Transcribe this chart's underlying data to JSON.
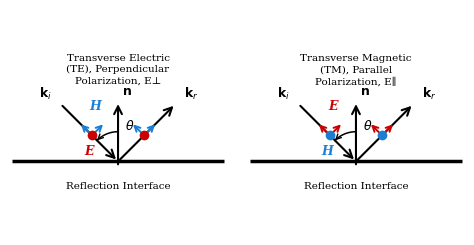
{
  "bg_color": "#ffffff",
  "panel_titles": [
    "Transverse Electric\n(TE), Perpendicular\nPolarization, E⊥",
    "Transverse Magnetic\n(TM), Parallel\nPolarization, E∥"
  ],
  "bottom_label": "Reflection Interface",
  "left_panel": {
    "dot_color": "#cc0000",
    "arrow_color": "#1a7fd4",
    "dot_label": "E",
    "arrow_label": "H",
    "dot_label_color": "#cc0000",
    "arrow_label_color": "#1a7fd4"
  },
  "right_panel": {
    "dot_color": "#1a7fd4",
    "arrow_color": "#cc0000",
    "dot_label": "H",
    "arrow_label": "E",
    "dot_label_color": "#1a7fd4",
    "arrow_label_color": "#cc0000"
  }
}
